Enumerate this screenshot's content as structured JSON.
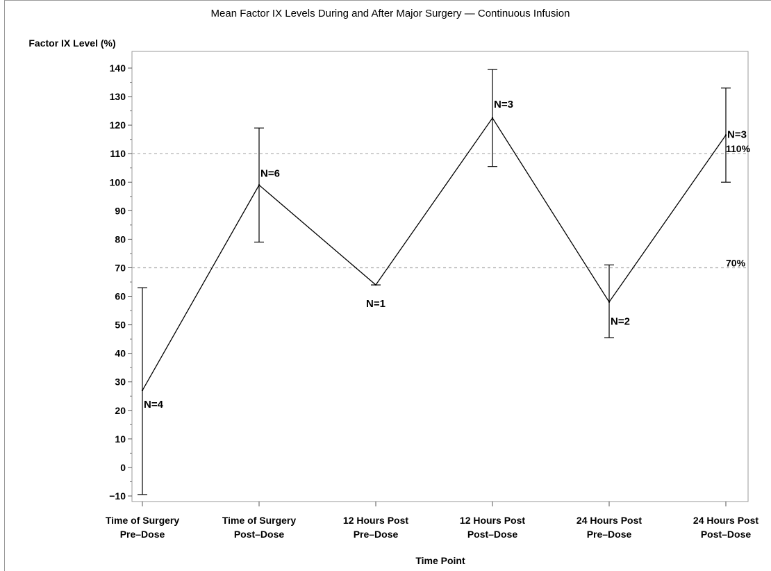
{
  "chart_data": {
    "type": "line",
    "title": "Mean Factor IX Levels During and After Major Surgery — Continuous Infusion",
    "xlabel": "Time Point",
    "ylabel": "Factor IX Level (%)",
    "ylim": [
      -10,
      140
    ],
    "yticks": [
      -10,
      0,
      10,
      20,
      30,
      40,
      50,
      60,
      70,
      80,
      90,
      100,
      110,
      120,
      130,
      140
    ],
    "categories": [
      [
        "Time of Surgery",
        "Pre–Dose"
      ],
      [
        "Time of Surgery",
        "Post–Dose"
      ],
      [
        "12 Hours Post",
        "Pre–Dose"
      ],
      [
        "12 Hours Post",
        "Post–Dose"
      ],
      [
        "24 Hours Post",
        "Pre–Dose"
      ],
      [
        "24 Hours Post",
        "Post–Dose"
      ]
    ],
    "series": [
      {
        "values": [
          27,
          99,
          64,
          122.5,
          58,
          116.5
        ],
        "error_low": [
          -9.5,
          79,
          64,
          105.5,
          45.5,
          100
        ],
        "error_high": [
          63,
          119,
          64,
          139.5,
          71,
          133
        ],
        "n_labels": [
          "N=4",
          "N=6",
          "N=1",
          "N=3",
          "N=2",
          "N=3"
        ]
      }
    ],
    "reference_lines": [
      {
        "value": 110,
        "label": "110%"
      },
      {
        "value": 70,
        "label": "70%"
      }
    ],
    "grid": false,
    "colors": {
      "line": "#000000",
      "reference": "#a8a8a8",
      "frame": "#9a9a9a"
    }
  }
}
